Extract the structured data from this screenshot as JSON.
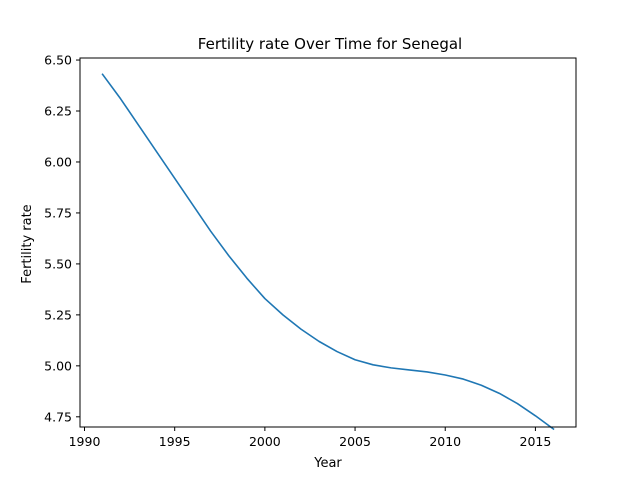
{
  "chart_data": {
    "type": "line",
    "title": "Fertility rate Over Time for Senegal",
    "xlabel": "Year",
    "ylabel": "Fertility rate",
    "xlim": [
      1989.75,
      2017.25
    ],
    "ylim": [
      4.7,
      6.51
    ],
    "xticks": [
      1990,
      1995,
      2000,
      2005,
      2010,
      2015
    ],
    "yticks": [
      4.75,
      5.0,
      5.25,
      5.5,
      5.75,
      6.0,
      6.25,
      6.5
    ],
    "xtick_labels": [
      "1990",
      "1995",
      "2000",
      "2005",
      "2010",
      "2015"
    ],
    "ytick_labels": [
      "4.75",
      "5.00",
      "5.25",
      "5.50",
      "5.75",
      "6.00",
      "6.25",
      "6.50"
    ],
    "grid": false,
    "series": [
      {
        "color": "#1f77b4",
        "x": [
          1991,
          1992,
          1993,
          1994,
          1995,
          1996,
          1997,
          1998,
          1999,
          2000,
          2001,
          2002,
          2003,
          2004,
          2005,
          2006,
          2007,
          2008,
          2009,
          2010,
          2011,
          2012,
          2013,
          2014,
          2015,
          2016
        ],
        "values": [
          6.43,
          6.31,
          6.18,
          6.05,
          5.92,
          5.79,
          5.66,
          5.54,
          5.43,
          5.33,
          5.25,
          5.18,
          5.12,
          5.07,
          5.03,
          5.005,
          4.99,
          4.98,
          4.97,
          4.955,
          4.935,
          4.905,
          4.865,
          4.815,
          4.755,
          4.69
        ]
      }
    ]
  }
}
